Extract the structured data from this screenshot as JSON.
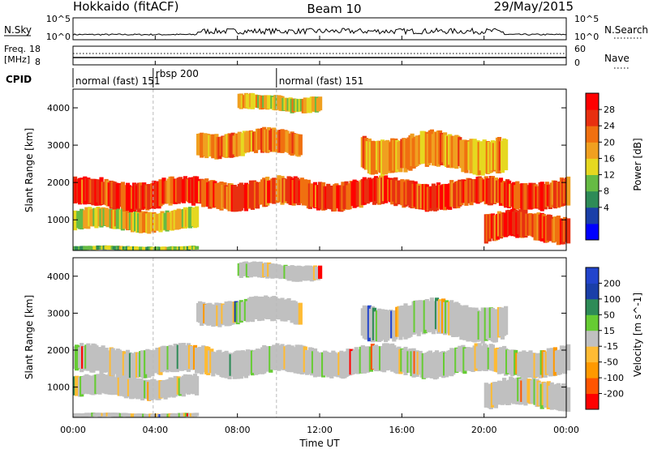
{
  "header": {
    "station": "Hokkaido (fitACF)",
    "beam": "Beam 10",
    "date": "29/May/2015"
  },
  "nsky_panel": {
    "left_label": "N.Sky",
    "right_label": "N.Search",
    "left_ticks": [
      "10^5",
      "10^0"
    ],
    "right_ticks": [
      "10^5",
      "10^0"
    ]
  },
  "freq_panel": {
    "left_label_1": "Freq.",
    "left_label_2": "[MHz]",
    "left_ticks": [
      "18",
      "8"
    ],
    "right_ticks": [
      "60",
      "0"
    ],
    "right_label": "Nave"
  },
  "cpid_panel": {
    "label": "CPID",
    "segments": [
      {
        "start_hour": 0,
        "text": "normal (fast) 151"
      },
      {
        "start_hour": 3.9,
        "text": "rbsp 200"
      },
      {
        "start_hour": 9.9,
        "text": "normal (fast) 151"
      }
    ]
  },
  "x_axis": {
    "label": "Time UT",
    "range_hours": [
      0,
      24
    ],
    "ticks": [
      "00:00",
      "04:00",
      "08:00",
      "12:00",
      "16:00",
      "20:00",
      "00:00"
    ]
  },
  "chart_data": [
    {
      "type": "heatmap",
      "name": "power",
      "ylabel": "Slant Range [km]",
      "ylim": [
        180,
        4500
      ],
      "yticks": [
        "4000",
        "3000",
        "2000",
        "1000"
      ],
      "colorbar": {
        "label": "Power [dB]",
        "ticks": [
          "28",
          "24",
          "20",
          "16",
          "12",
          "8",
          "4"
        ],
        "colors": [
          "#0000ff",
          "#1a3fa8",
          "#2e8b57",
          "#66bb44",
          "#e6d820",
          "#f0a020",
          "#f07010",
          "#e83010",
          "#ff0000"
        ]
      },
      "echo_bands": [
        {
          "t_start": 0,
          "t_end": 6,
          "r_low": 700,
          "r_high": 1300,
          "level": 0.55
        },
        {
          "t_start": 0,
          "t_end": 24,
          "r_low": 1300,
          "r_high": 2100,
          "level": 0.85
        },
        {
          "t_start": 6,
          "t_end": 11,
          "r_low": 2700,
          "r_high": 3400,
          "level": 0.7
        },
        {
          "t_start": 8,
          "t_end": 12,
          "r_low": 3900,
          "r_high": 4350,
          "level": 0.55
        },
        {
          "t_start": 14,
          "t_end": 21,
          "r_low": 2300,
          "r_high": 3300,
          "level": 0.65
        },
        {
          "t_start": 20,
          "t_end": 24,
          "r_low": 400,
          "r_high": 1200,
          "level": 0.85
        },
        {
          "t_start": 0,
          "t_end": 6,
          "r_low": 180,
          "r_high": 300,
          "level": 0.4
        }
      ]
    },
    {
      "type": "heatmap",
      "name": "velocity",
      "ylabel": "Slant Range [km]",
      "ylim": [
        180,
        4500
      ],
      "yticks": [
        "4000",
        "3000",
        "2000",
        "1000"
      ],
      "colorbar": {
        "label": "Velocity [m s^-1]",
        "ticks": [
          "200",
          "100",
          "50",
          "15",
          "-15",
          "-50",
          "-100",
          "-200"
        ],
        "colors": [
          "#ff0000",
          "#ff5500",
          "#ff9900",
          "#ffbb33",
          "#c0c0c0",
          "#66cc33",
          "#2e8b57",
          "#1a3fa8",
          "#2244cc"
        ]
      },
      "echo_bands": [
        {
          "t_start": 0,
          "t_end": 6,
          "r_low": 700,
          "r_high": 1300,
          "level": 0.5
        },
        {
          "t_start": 0,
          "t_end": 24,
          "r_low": 1300,
          "r_high": 2100,
          "level": 0.5
        },
        {
          "t_start": 6,
          "t_end": 11,
          "r_low": 2700,
          "r_high": 3400,
          "level": 0.5
        },
        {
          "t_start": 8,
          "t_end": 12,
          "r_low": 3900,
          "r_high": 4350,
          "level": 0.5
        },
        {
          "t_start": 14,
          "t_end": 21,
          "r_low": 2300,
          "r_high": 3300,
          "level": 0.5
        },
        {
          "t_start": 20,
          "t_end": 24,
          "r_low": 400,
          "r_high": 1200,
          "level": 0.5
        },
        {
          "t_start": 0,
          "t_end": 6,
          "r_low": 180,
          "r_high": 300,
          "level": 0.5
        }
      ]
    }
  ]
}
